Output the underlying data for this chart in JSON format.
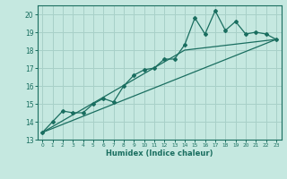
{
  "xlabel": "Humidex (Indice chaleur)",
  "ylabel": "",
  "background_color": "#c5e8e0",
  "grid_color": "#a8d0c8",
  "line_color": "#1a6e60",
  "xlim": [
    -0.5,
    23.5
  ],
  "ylim": [
    13,
    20.5
  ],
  "yticks": [
    13,
    14,
    15,
    16,
    17,
    18,
    19,
    20
  ],
  "xticks": [
    0,
    1,
    2,
    3,
    4,
    5,
    6,
    7,
    8,
    9,
    10,
    11,
    12,
    13,
    14,
    15,
    16,
    17,
    18,
    19,
    20,
    21,
    22,
    23
  ],
  "series1_x": [
    0,
    1,
    2,
    3,
    4,
    5,
    6,
    7,
    8,
    9,
    10,
    11,
    12,
    13,
    14,
    15,
    16,
    17,
    18,
    19,
    20,
    21,
    22,
    23
  ],
  "series1_y": [
    13.4,
    14.0,
    14.6,
    14.5,
    14.5,
    15.0,
    15.3,
    15.1,
    16.0,
    16.6,
    16.9,
    17.0,
    17.5,
    17.5,
    18.3,
    19.8,
    18.9,
    20.2,
    19.1,
    19.6,
    18.9,
    19.0,
    18.9,
    18.6
  ],
  "series2_x": [
    0,
    23
  ],
  "series2_y": [
    13.4,
    18.6
  ],
  "series3_x": [
    0,
    14,
    23
  ],
  "series3_y": [
    13.4,
    18.0,
    18.6
  ]
}
